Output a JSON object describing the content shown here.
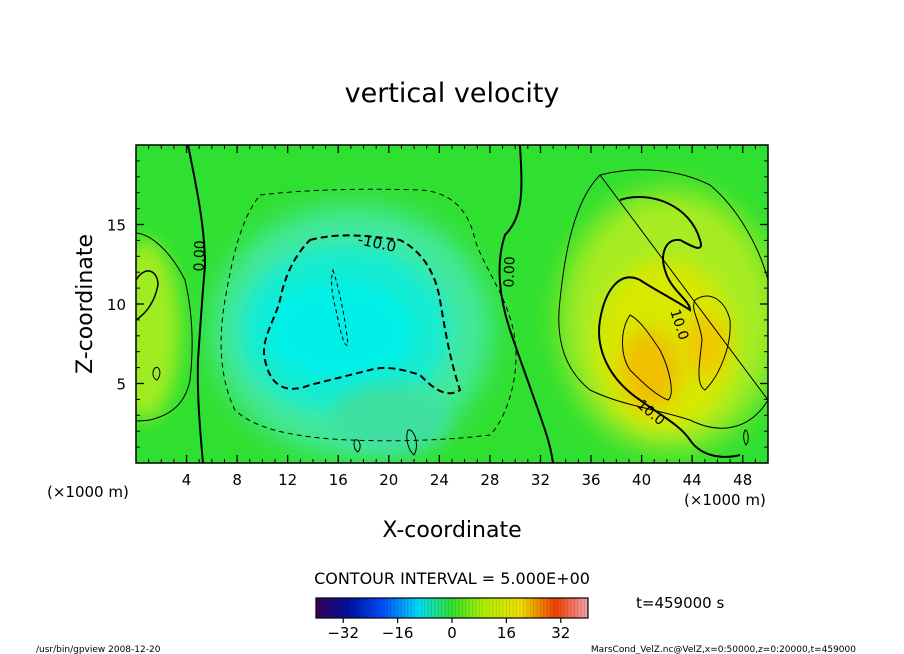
{
  "chart_data": {
    "type": "heatmap",
    "title": "vertical velocity",
    "xlabel": "X-coordinate",
    "ylabel": "Z-coordinate",
    "x_unit_left": "(×1000 m)",
    "x_unit_right": "(×1000 m)",
    "xlim": [
      0,
      50
    ],
    "ylim": [
      0,
      20
    ],
    "x_ticks": [
      4,
      8,
      12,
      16,
      20,
      24,
      28,
      32,
      36,
      40,
      44,
      48
    ],
    "y_ticks": [
      5,
      10,
      15
    ],
    "contour_interval_text": "CONTOUR INTERVAL = 5.000E+00",
    "time_text": "t=459000 s",
    "colorbar": {
      "range": [
        -40,
        40
      ],
      "ticks": [
        -32,
        -16,
        0,
        16,
        32
      ]
    },
    "contour_labels": [
      {
        "text": "0.00",
        "x": 5.3,
        "z": 13.2,
        "angle": -88
      },
      {
        "text": "0.00",
        "x": 29.2,
        "z": 12.6,
        "angle": -88
      },
      {
        "text": "-10.0",
        "x": 19.0,
        "z": 13.9,
        "angle": 12
      },
      {
        "text": "10.0",
        "x": 42.8,
        "z": 8.6,
        "angle": 72
      },
      {
        "text": "10.0",
        "x": 40.2,
        "z": 3.2,
        "angle": 40
      }
    ],
    "features": [
      {
        "label": "downdraft core (minimum)",
        "x": 16,
        "z": 8,
        "approx_value": -15
      },
      {
        "label": "updraft core (maximum)",
        "x": 42,
        "z": 6,
        "approx_value": 15
      },
      {
        "label": "weak updraft",
        "x": 0.7,
        "z": 10,
        "approx_value": 5
      }
    ]
  },
  "footer": {
    "left": "/usr/bin/gpview   2008-12-20",
    "right": "MarsCond_VelZ.nc@VelZ,x=0:50000,z=0:20000,t=459000"
  },
  "colors": {
    "background_field": "#30e030",
    "negative_core": "#00f0e0",
    "positive_core": "#f0c000"
  }
}
